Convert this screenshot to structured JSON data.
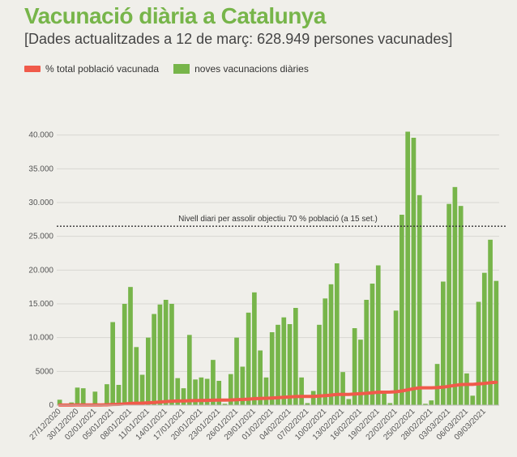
{
  "title": "Vacunació diària a Catalunya",
  "subtitle": "[Dades actualitzades a 12 de març: 628.949 persones vacunades]",
  "colors": {
    "bars": "#77b54a",
    "line": "#f05a4a",
    "title": "#77b54a",
    "grid": "#d8d7d2"
  },
  "chart_data": {
    "type": "bar",
    "title": "Vacunació diària a Catalunya",
    "subtitle": "[Dades actualitzades a 12 de març: 628.949 persones vacunades]",
    "xlabel": "",
    "ylabel": "",
    "ylim": [
      0,
      45000
    ],
    "yticks": [
      0,
      5000,
      10000,
      15000,
      20000,
      25000,
      30000,
      35000,
      40000
    ],
    "ytick_labels": [
      "0",
      "5000",
      "10.000",
      "15.000",
      "20.000",
      "25.000",
      "30.000",
      "35.000",
      "40.000"
    ],
    "grid": true,
    "legend_position": "top-left",
    "start_date": "27/12/2020",
    "x_tick_labels": [
      "27/12/2020",
      "30/12/2020",
      "02/01/2021",
      "05/01/2021",
      "08/01/2021",
      "11/01/2021",
      "14/01/2021",
      "17/01/2021",
      "20/01/2021",
      "23/01/2021",
      "26/01/2021",
      "29/01/2021",
      "01/02/2021",
      "04/02/2021",
      "07/02/2021",
      "10/02/2021",
      "13/02/2021",
      "16/02/2021",
      "19/02/2021",
      "22/02/2021",
      "25/02/2021",
      "28/02/2021",
      "03/03/2021",
      "06/03/2021",
      "09/03/2021"
    ],
    "series": [
      {
        "name": "noves vacunacions diàries",
        "type": "bar",
        "values": [
          800,
          200,
          400,
          2600,
          2500,
          100,
          2000,
          200,
          3100,
          12300,
          3000,
          15000,
          17500,
          8600,
          4500,
          10000,
          13500,
          14900,
          15600,
          15000,
          4000,
          2500,
          10400,
          3800,
          4100,
          3900,
          6700,
          3600,
          200,
          4600,
          10000,
          5700,
          13700,
          16700,
          8100,
          4100,
          10800,
          11900,
          13000,
          12000,
          14400,
          4100,
          300,
          2100,
          11900,
          15800,
          17900,
          21000,
          4900,
          900,
          11400,
          9700,
          15600,
          18000,
          20700,
          1700,
          300,
          14000,
          28200,
          40500,
          39600,
          31100,
          200,
          700,
          6100,
          18300,
          29800,
          32300,
          29500,
          4700,
          1400,
          15300,
          19600,
          24500,
          18400
        ]
      },
      {
        "name": "% total població vacunada",
        "type": "line",
        "values": [
          0.02,
          0.02,
          0.03,
          0.06,
          0.1,
          0.1,
          0.12,
          0.12,
          0.16,
          0.32,
          0.36,
          0.55,
          0.78,
          0.89,
          0.95,
          1.08,
          1.26,
          1.45,
          1.65,
          1.85,
          1.9,
          1.93,
          2.07,
          2.12,
          2.17,
          2.22,
          2.31,
          2.36,
          2.36,
          2.42,
          2.55,
          2.62,
          2.8,
          3.02,
          3.13,
          3.18,
          3.32,
          3.48,
          3.65,
          3.8,
          3.99,
          4.04,
          4.05,
          4.08,
          4.23,
          4.44,
          4.67,
          4.95,
          5.01,
          5.02,
          5.17,
          5.3,
          5.5,
          5.74,
          6.01,
          6.03,
          6.04,
          6.22,
          6.59,
          7.12,
          7.64,
          8.04,
          8.04,
          8.05,
          8.13,
          8.37,
          8.76,
          9.18,
          9.57,
          9.63,
          9.65,
          9.85,
          10.1,
          10.42,
          10.66
        ]
      }
    ],
    "reference_line": {
      "value": 26500,
      "label": "Nivell diari per assolir objectiu 70 % població (a 15 set.)"
    }
  }
}
